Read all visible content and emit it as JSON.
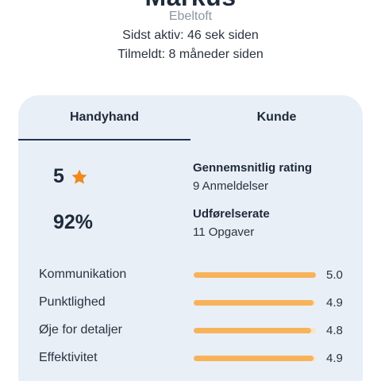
{
  "profile": {
    "name": "Markus",
    "city": "Ebeltoft",
    "last_active": "Sidst aktiv: 46 sek siden",
    "joined": "Tilmeldt: 8 måneder siden"
  },
  "tabs": {
    "handyhand": "Handyhand",
    "kunde": "Kunde",
    "active": "Handyhand"
  },
  "stats": {
    "rating_value": "5",
    "rating_title": "Gennemsnitlig rating",
    "rating_sub": "9 Anmeldelser",
    "completion_value": "92%",
    "completion_title": "Udførelserate",
    "completion_sub": "11 Opgaver"
  },
  "metrics": [
    {
      "label": "Kommunikation",
      "value": "5.0",
      "score": 5.0
    },
    {
      "label": "Punktlighed",
      "value": "4.9",
      "score": 4.9
    },
    {
      "label": "Øje for detaljer",
      "value": "4.8",
      "score": 4.8
    },
    {
      "label": "Effektivitet",
      "value": "4.9",
      "score": 4.9
    }
  ],
  "colors": {
    "accent": "#f8b35a",
    "star": "#f08a1c",
    "card_bg": "#e9eff7",
    "text_dark": "#1e2a3a"
  },
  "icons": {
    "star": "star-icon"
  }
}
